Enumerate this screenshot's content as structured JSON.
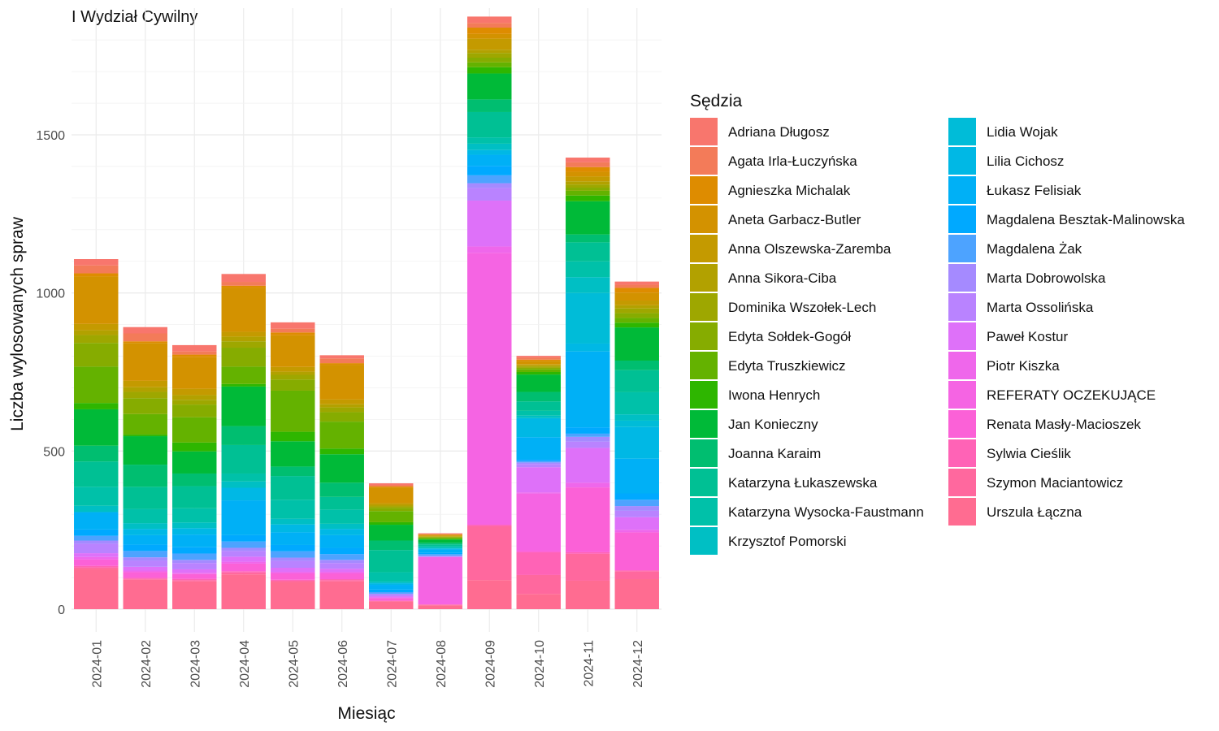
{
  "chart_data": {
    "type": "bar",
    "stacked": true,
    "title": "I Wydział Cywilny",
    "xlabel": "Miesiąc",
    "ylabel": "Liczba wylosowanych spraw",
    "ylim": [
      0,
      1830
    ],
    "y_ticks": [
      0,
      500,
      1000,
      1500
    ],
    "grid": true,
    "legend_title": "Sędzia",
    "legend_position": "right",
    "categories": [
      "2024-01",
      "2024-02",
      "2024-03",
      "2024-04",
      "2024-05",
      "2024-06",
      "2024-07",
      "2024-08",
      "2024-09",
      "2024-10",
      "2024-11",
      "2024-12"
    ],
    "series": [
      {
        "name": "Urszula Łączna",
        "color": "#FF6C91",
        "values": [
          127,
          93,
          88,
          110,
          86,
          88,
          24,
          12,
          92,
          48,
          90,
          95
        ]
      },
      {
        "name": "Szymon Maciantowicz",
        "color": "#FF689E",
        "values": [
          5,
          3,
          4,
          6,
          4,
          4,
          2,
          2,
          170,
          60,
          85,
          25
        ]
      },
      {
        "name": "Sylwia Cieślik",
        "color": "#FF63B6",
        "values": [
          5,
          3,
          4,
          4,
          3,
          3,
          1,
          1,
          5,
          72,
          5,
          3
        ]
      },
      {
        "name": "Renata Masły-Macioszek",
        "color": "#FB61D7",
        "values": [
          20,
          18,
          15,
          24,
          20,
          18,
          8,
          0,
          0,
          5,
          205,
          120
        ]
      },
      {
        "name": "REFERATY OCZEKUJĄCE",
        "color": "#F564E3",
        "values": [
          0,
          0,
          0,
          0,
          0,
          0,
          0,
          150,
          860,
          180,
          0,
          0
        ]
      },
      {
        "name": "Piotr Kiszka",
        "color": "#EF67EB",
        "values": [
          8,
          5,
          4,
          6,
          5,
          5,
          2,
          0,
          20,
          4,
          15,
          8
        ]
      },
      {
        "name": "Paweł Kostur",
        "color": "#DE71F9",
        "values": [
          12,
          12,
          11,
          16,
          13,
          10,
          4,
          0,
          145,
          80,
          110,
          40
        ]
      },
      {
        "name": "Marta Ossolińska",
        "color": "#B983FF",
        "values": [
          30,
          20,
          20,
          18,
          22,
          18,
          5,
          2,
          40,
          10,
          20,
          20
        ]
      },
      {
        "name": "Marta Dobrowolska",
        "color": "#A58AFF",
        "values": [
          10,
          10,
          10,
          10,
          10,
          10,
          3,
          2,
          15,
          5,
          15,
          15
        ]
      },
      {
        "name": "Magdalena Żak",
        "color": "#4DA3FF",
        "values": [
          15,
          20,
          20,
          20,
          20,
          18,
          5,
          5,
          25,
          5,
          10,
          20
        ]
      },
      {
        "name": "Magdalena Besztak-Malinowska",
        "color": "#00A9FF",
        "values": [
          20,
          20,
          20,
          20,
          20,
          20,
          8,
          5,
          30,
          5,
          20,
          20
        ]
      },
      {
        "name": "Łukasz Felisiak",
        "color": "#00B0F6",
        "values": [
          55,
          30,
          40,
          110,
          40,
          40,
          15,
          10,
          35,
          70,
          240,
          110
        ]
      },
      {
        "name": "Lilia Cichosz",
        "color": "#00B8E5",
        "values": [
          0,
          20,
          20,
          40,
          25,
          20,
          5,
          3,
          15,
          60,
          25,
          100
        ]
      },
      {
        "name": "Lidia Wojak",
        "color": "#00BCD8",
        "values": [
          0,
          0,
          0,
          0,
          0,
          0,
          0,
          0,
          0,
          0,
          160,
          20
        ]
      },
      {
        "name": "Krzysztof Pomorski",
        "color": "#00BFC4",
        "values": [
          20,
          18,
          18,
          20,
          18,
          16,
          5,
          3,
          20,
          8,
          50,
          20
        ]
      },
      {
        "name": "Katarzyna Wysocka-Faustmann",
        "color": "#00C1A9",
        "values": [
          60,
          45,
          45,
          25,
          60,
          45,
          30,
          5,
          20,
          15,
          50,
          70
        ]
      },
      {
        "name": "Katarzyna Łukaszewska",
        "color": "#00C094",
        "values": [
          80,
          70,
          70,
          90,
          75,
          40,
          70,
          5,
          80,
          30,
          60,
          70
        ]
      },
      {
        "name": "Joanna Karaim",
        "color": "#00BE70",
        "values": [
          50,
          70,
          40,
          60,
          30,
          45,
          30,
          5,
          40,
          30,
          25,
          30
        ]
      },
      {
        "name": "Jan Konieczny",
        "color": "#00BA38",
        "values": [
          115,
          90,
          70,
          125,
          80,
          90,
          50,
          10,
          82,
          55,
          105,
          105
        ]
      },
      {
        "name": "Iwona Henrych",
        "color": "#2EB600",
        "values": [
          20,
          5,
          28,
          8,
          30,
          18,
          8,
          2,
          20,
          8,
          18,
          15
        ]
      },
      {
        "name": "Edyta Truszkiewicz",
        "color": "#64B200",
        "values": [
          115,
          65,
          80,
          55,
          130,
          85,
          35,
          3,
          15,
          8,
          15,
          15
        ]
      },
      {
        "name": "Edyta Sołdek-Gogół",
        "color": "#86AC00",
        "values": [
          75,
          50,
          40,
          60,
          35,
          30,
          10,
          2,
          15,
          5,
          10,
          15
        ]
      },
      {
        "name": "Dominika Wszołek-Lech",
        "color": "#9EA700",
        "values": [
          25,
          20,
          15,
          20,
          15,
          15,
          5,
          2,
          15,
          4,
          10,
          15
        ]
      },
      {
        "name": "Anna Sikora-Ciba",
        "color": "#B2A100",
        "values": [
          15,
          15,
          15,
          15,
          10,
          10,
          5,
          1,
          10,
          4,
          10,
          10
        ]
      },
      {
        "name": "Anna Olszewska-Zaremba",
        "color": "#C49A00",
        "values": [
          20,
          20,
          20,
          15,
          15,
          15,
          5,
          2,
          35,
          4,
          15,
          15
        ]
      },
      {
        "name": "Aneta Garbacz-Butler",
        "color": "#D39200",
        "values": [
          150,
          120,
          100,
          140,
          100,
          110,
          50,
          3,
          15,
          10,
          15,
          25
        ]
      },
      {
        "name": "Agnieszka Michalak",
        "color": "#DE8C00",
        "values": [
          10,
          5,
          8,
          6,
          9,
          5,
          3,
          1,
          20,
          4,
          15,
          15
        ]
      },
      {
        "name": "Agata Irla-Łuczyńska",
        "color": "#F37B59",
        "values": [
          25,
          25,
          10,
          12,
          12,
          15,
          5,
          2,
          15,
          7,
          15,
          10
        ]
      },
      {
        "name": "Adriana Długosz",
        "color": "#F8766D",
        "values": [
          20,
          20,
          20,
          25,
          20,
          10,
          5,
          2,
          20,
          5,
          15,
          10
        ]
      }
    ]
  }
}
